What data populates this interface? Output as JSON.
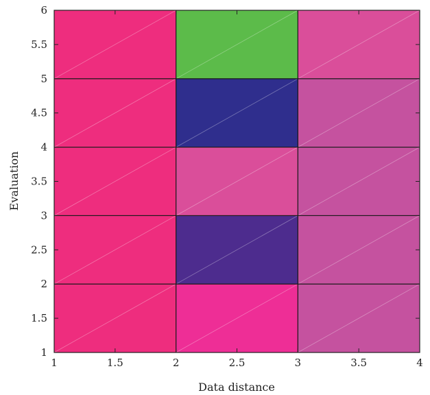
{
  "chart_data": {
    "type": "heatmap",
    "xlabel": "Data distance",
    "ylabel": "Evaluation",
    "xlim": [
      1,
      4
    ],
    "ylim": [
      1,
      6
    ],
    "x_ticks": [
      1,
      1.5,
      2,
      2.5,
      3,
      3.5,
      4
    ],
    "y_ticks": [
      1,
      1.5,
      2,
      2.5,
      3,
      3.5,
      4,
      4.5,
      5,
      5.5,
      6
    ],
    "x_tick_labels": [
      "1",
      "1.5",
      "2",
      "2.5",
      "3",
      "3.5",
      "4"
    ],
    "y_tick_labels": [
      "1",
      "1.5",
      "2",
      "2.5",
      "3",
      "3.5",
      "4",
      "4.5",
      "5",
      "5.5",
      "6"
    ],
    "grid": false,
    "cells": [
      {
        "x0": 1,
        "x1": 2,
        "y0": 5,
        "y1": 6,
        "color": "#EE2D7E"
      },
      {
        "x0": 2,
        "x1": 3,
        "y0": 5,
        "y1": 6,
        "color": "#5CBB4A"
      },
      {
        "x0": 3,
        "x1": 4,
        "y0": 5,
        "y1": 6,
        "color": "#DA4E9A"
      },
      {
        "x0": 1,
        "x1": 2,
        "y0": 4,
        "y1": 5,
        "color": "#EE2D7E"
      },
      {
        "x0": 2,
        "x1": 3,
        "y0": 4,
        "y1": 5,
        "color": "#2F2E8D"
      },
      {
        "x0": 3,
        "x1": 4,
        "y0": 4,
        "y1": 5,
        "color": "#C5529F"
      },
      {
        "x0": 1,
        "x1": 2,
        "y0": 3,
        "y1": 4,
        "color": "#EE2D7E"
      },
      {
        "x0": 2,
        "x1": 3,
        "y0": 3,
        "y1": 4,
        "color": "#DA4E9A"
      },
      {
        "x0": 3,
        "x1": 4,
        "y0": 3,
        "y1": 4,
        "color": "#C5529F"
      },
      {
        "x0": 1,
        "x1": 2,
        "y0": 2,
        "y1": 3,
        "color": "#EE2D7E"
      },
      {
        "x0": 2,
        "x1": 3,
        "y0": 2,
        "y1": 3,
        "color": "#4D2C8E"
      },
      {
        "x0": 3,
        "x1": 4,
        "y0": 2,
        "y1": 3,
        "color": "#C5529F"
      },
      {
        "x0": 1,
        "x1": 2,
        "y0": 1,
        "y1": 2,
        "color": "#EE2D7E"
      },
      {
        "x0": 2,
        "x1": 3,
        "y0": 1,
        "y1": 2,
        "color": "#EE2E96"
      },
      {
        "x0": 3,
        "x1": 4,
        "y0": 1,
        "y1": 2,
        "color": "#C5529F"
      }
    ]
  }
}
